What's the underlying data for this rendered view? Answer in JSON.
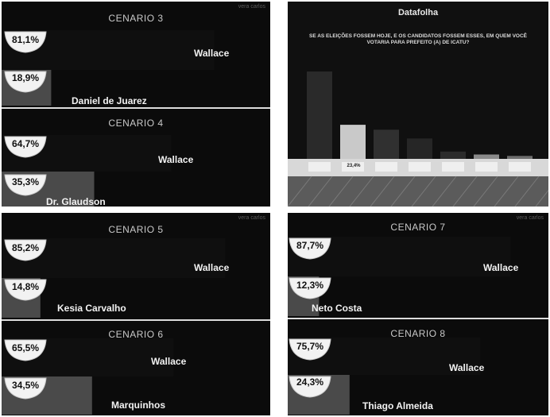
{
  "watermark": "vera carlos",
  "poll": {
    "logo": "Datafolha",
    "question": "SE AS ELEIÇÕES FOSSEM HOJE, E OS CANDIDATOS FOSSEM ESSES, EM QUEM VOCÊ VOTARIA PARA PREFEITO (A) DE ICATU?",
    "visible_label": "23,4%"
  },
  "chart_data": [
    {
      "type": "bar",
      "title": "CENARIO 3",
      "series": [
        {
          "name": "Wallace",
          "values": [
            81.1
          ],
          "label": "81,1%"
        },
        {
          "name": "Daniel de Juarez",
          "values": [
            18.9
          ],
          "label": "18,9%"
        }
      ]
    },
    {
      "type": "bar",
      "title": "CENARIO 4",
      "series": [
        {
          "name": "Wallace",
          "values": [
            64.7
          ],
          "label": "64,7%"
        },
        {
          "name": "Dr. Glaudson",
          "values": [
            35.3
          ],
          "label": "35,3%"
        }
      ]
    },
    {
      "type": "bar",
      "title": "CENARIO 5",
      "series": [
        {
          "name": "Wallace",
          "values": [
            85.2
          ],
          "label": "85,2%"
        },
        {
          "name": "Kesia Carvalho",
          "values": [
            14.8
          ],
          "label": "14,8%"
        }
      ]
    },
    {
      "type": "bar",
      "title": "CENARIO 6",
      "series": [
        {
          "name": "Wallace",
          "values": [
            65.5
          ],
          "label": "65,5%"
        },
        {
          "name": "Marquinhos",
          "values": [
            34.5
          ],
          "label": "34,5%"
        }
      ]
    },
    {
      "type": "bar",
      "title": "CENARIO 7",
      "series": [
        {
          "name": "Wallace",
          "values": [
            87.7
          ],
          "label": "87,7%"
        },
        {
          "name": "Neto Costa",
          "values": [
            12.3
          ],
          "label": "12,3%"
        }
      ]
    },
    {
      "type": "bar",
      "title": "CENARIO 8",
      "series": [
        {
          "name": "Wallace",
          "values": [
            75.7
          ],
          "label": "75,7%"
        },
        {
          "name": "Thiago Almeida",
          "values": [
            24.3
          ],
          "label": "24,3%"
        }
      ]
    },
    {
      "type": "bar",
      "title": "",
      "values": [
        60,
        23.4,
        20,
        14,
        5,
        3,
        2
      ]
    }
  ]
}
